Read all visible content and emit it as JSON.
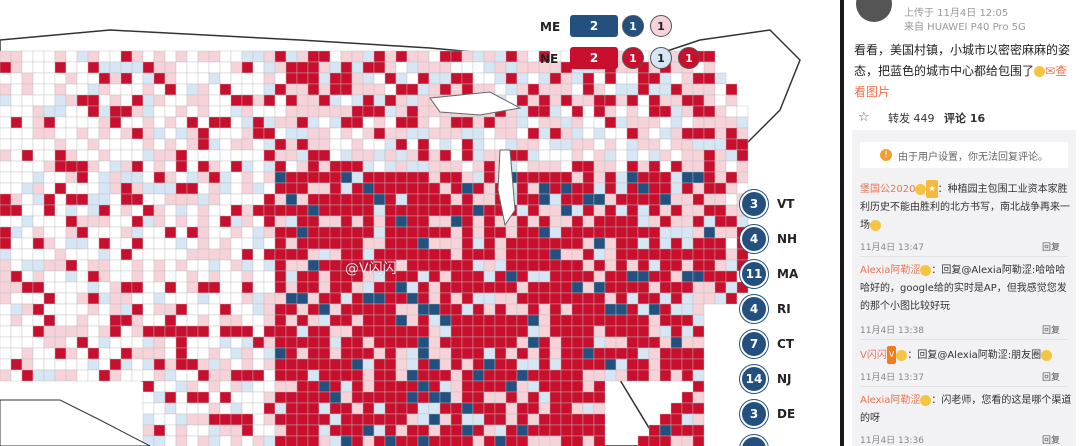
{
  "map": {
    "legend": {
      "me_label": "ME",
      "me_items": [
        "2",
        "1",
        "1"
      ],
      "ne_label": "NE",
      "ne_items": [
        "2",
        "1",
        "1",
        "1"
      ]
    },
    "electoral_badges": [
      {
        "state": "VT",
        "votes": "3"
      },
      {
        "state": "NH",
        "votes": "4"
      },
      {
        "state": "MA",
        "votes": "11"
      },
      {
        "state": "RI",
        "votes": "4"
      },
      {
        "state": "CT",
        "votes": "7"
      },
      {
        "state": "NJ",
        "votes": "14"
      },
      {
        "state": "DE",
        "votes": "3"
      }
    ],
    "watermark": "@V闪闪",
    "colors": {
      "red": "#c8102e",
      "light_red": "#f6d3d9",
      "blue": "#23507e",
      "light_blue": "#d6e6f5",
      "border": "#bfbfbf"
    }
  },
  "post": {
    "upload_time": "上传于 11月4日 12:05",
    "source": "来自 HUAWEI P40 Pro 5G",
    "text": "看看，美国村镇，小城市以密密麻麻的姿态，把蓝色的城市中心都给包围了",
    "link_text": "查看图片",
    "repost": "转发 449",
    "comments_tab": "评论 16"
  },
  "comments": {
    "notice": "由于用户设置，你无法回复评论。",
    "items": [
      {
        "user": "堡国公2020",
        "text": "：种植园主包围工业资本家胜利历史不能由胜利的北方书写，南北战争再来一场",
        "time": "11月4日 13:47",
        "reply": "回复"
      },
      {
        "user": "Alexia阿勒涩",
        "text": "：回复@Alexia阿勒涩:哈哈哈哈好的，google给的实时是AP，但我感觉您发的那个小图比较好玩",
        "time": "11月4日 13:38",
        "reply": "回复"
      },
      {
        "user": "V闪闪",
        "text": "：回复@Alexia阿勒涩:朋友圈",
        "time": "11月4日 13:37",
        "reply": "回复"
      },
      {
        "user": "Alexia阿勒涩",
        "text": "：闪老师，您看的这是哪个渠道的呀",
        "time": "11月4日 13:36",
        "reply": "回复"
      }
    ]
  }
}
